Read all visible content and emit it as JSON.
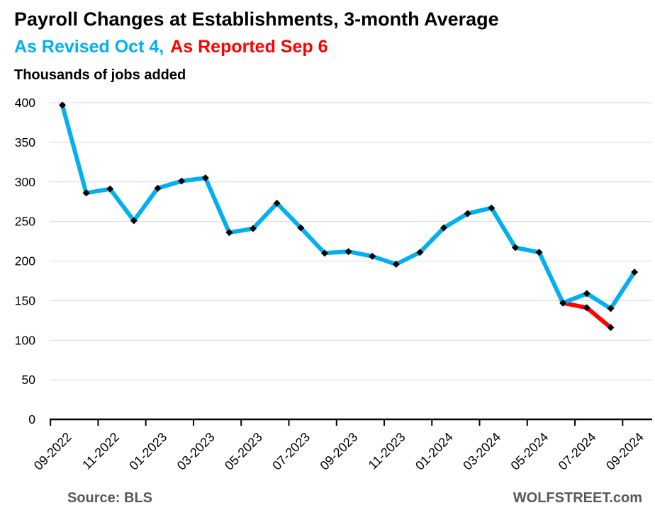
{
  "header": {
    "title": "Payroll Changes at Establishments, 3-month Average",
    "subtitle_revised": "As Revised Oct 4,",
    "subtitle_reported": "As Reported Sep 6",
    "unit_label": "Thousands of jobs added"
  },
  "footer": {
    "source": "Source: BLS",
    "brand": "WOLFSTREET.com"
  },
  "colors": {
    "revised_blue": "#00B0F0",
    "reported_red": "#FF0000",
    "grid": "#D9D9D9",
    "axis": "#000000",
    "marker": "#000000",
    "footer_text": "#595959"
  },
  "chart_data": {
    "type": "line",
    "title": "Payroll Changes at Establishments, 3-month Average",
    "subtitle": "As Revised Oct 4, As Reported Sep 6",
    "ylabel": "Thousands of jobs added",
    "xlabel": "",
    "ylim": [
      0,
      400
    ],
    "ytick_step": 50,
    "grid": "horizontal",
    "marker": "diamond",
    "legend_position": "in-subtitle",
    "categories": [
      "09-2022",
      "10-2022",
      "11-2022",
      "12-2022",
      "01-2023",
      "02-2023",
      "03-2023",
      "04-2023",
      "05-2023",
      "06-2023",
      "07-2023",
      "08-2023",
      "09-2023",
      "10-2023",
      "11-2023",
      "12-2023",
      "01-2024",
      "02-2024",
      "03-2024",
      "04-2024",
      "05-2024",
      "06-2024",
      "07-2024",
      "08-2024",
      "09-2024"
    ],
    "x_tick_labels": [
      "09-2022",
      "11-2022",
      "01-2023",
      "03-2023",
      "05-2023",
      "07-2023",
      "09-2023",
      "11-2023",
      "01-2024",
      "03-2024",
      "05-2024",
      "07-2024",
      "09-2024"
    ],
    "series": [
      {
        "name": "As Reported Sep 6",
        "color": "#FF0000",
        "values": [
          null,
          null,
          null,
          null,
          null,
          null,
          null,
          null,
          null,
          null,
          null,
          null,
          null,
          null,
          null,
          null,
          null,
          null,
          null,
          null,
          null,
          147,
          141,
          116,
          null
        ]
      },
      {
        "name": "As Revised Oct 4",
        "color": "#00B0F0",
        "values": [
          397,
          286,
          291,
          251,
          292,
          301,
          305,
          236,
          241,
          273,
          242,
          210,
          212,
          206,
          196,
          211,
          242,
          260,
          267,
          217,
          211,
          147,
          159,
          140,
          186
        ]
      }
    ]
  }
}
